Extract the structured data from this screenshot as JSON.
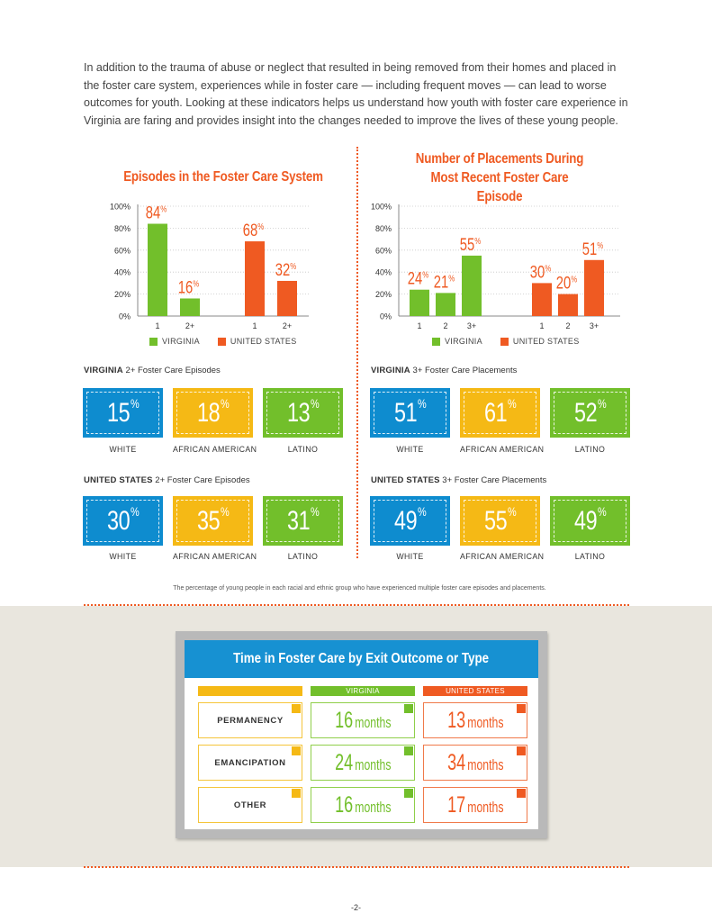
{
  "intro_text": "In addition to the trauma of abuse or neglect that resulted in being removed from their homes and placed in the foster care system, experiences while in foster care — including frequent moves — can lead to worse outcomes for youth. Looking at these indicators helps us understand how youth with foster care experience in Virginia are faring and provides insight into the changes needed to improve the lives of these young people.",
  "colors": {
    "virginia": "#72bf2b",
    "united_states": "#ef5a22",
    "white": "#0e8ccf",
    "african_american": "#f5b915",
    "latino": "#72bf2b",
    "accent": "#ef5a22",
    "title_bar": "#1791d2"
  },
  "chart_data": [
    {
      "type": "bar",
      "title": "Episodes in the Foster Care System",
      "categories": [
        "1",
        "2+"
      ],
      "series": [
        {
          "name": "VIRGINIA",
          "values": [
            84,
            16
          ]
        },
        {
          "name": "UNITED STATES",
          "values": [
            68,
            32
          ]
        }
      ],
      "value_labels": [
        [
          "84%",
          "16%"
        ],
        [
          "68%",
          "32%"
        ]
      ],
      "yticks": [
        "0%",
        "20%",
        "40%",
        "60%",
        "80%",
        "100%"
      ],
      "ylim": [
        0,
        100
      ],
      "grid": true,
      "legend": "bottom"
    },
    {
      "type": "bar",
      "title": "Number of Placements During Most Recent Foster Care Episode",
      "categories": [
        "1",
        "2",
        "3+"
      ],
      "series": [
        {
          "name": "VIRGINIA",
          "values": [
            24,
            21,
            55
          ]
        },
        {
          "name": "UNITED STATES",
          "values": [
            30,
            20,
            51
          ]
        }
      ],
      "value_labels": [
        [
          "24%",
          "21%",
          "55%"
        ],
        [
          "30%",
          "20%",
          "51%"
        ]
      ],
      "yticks": [
        "0%",
        "20%",
        "40%",
        "60%",
        "80%",
        "100%"
      ],
      "ylim": [
        0,
        100
      ],
      "grid": true,
      "legend": "bottom"
    }
  ],
  "stats": {
    "va_episodes": {
      "label_bold": "VIRGINIA",
      "label_rest": " 2+ Foster Care Episodes",
      "values": [
        "15",
        "18",
        "13"
      ]
    },
    "us_episodes": {
      "label_bold": "UNITED STATES",
      "label_rest": " 2+ Foster Care Episodes",
      "values": [
        "30",
        "35",
        "31"
      ]
    },
    "va_placements": {
      "label_bold": "VIRGINIA",
      "label_rest": " 3+ Foster Care Placements",
      "values": [
        "51",
        "61",
        "52"
      ]
    },
    "us_placements": {
      "label_bold": "UNITED STATES",
      "label_rest": " 3+ Foster Care Placements",
      "values": [
        "49",
        "55",
        "49"
      ]
    },
    "groups": [
      "WHITE",
      "AFRICAN AMERICAN",
      "LATINO"
    ],
    "percent_sign": "%"
  },
  "caption": "The percentage of young people in each racial and ethnic group who have experienced multiple foster care episodes and placements.",
  "time_table": {
    "title": "Time in Foster Care by Exit Outcome or Type",
    "col_virginia": "VIRGINIA",
    "col_us": "UNITED STATES",
    "unit": "months",
    "rows": [
      {
        "label": "PERMANENCY",
        "virginia": "16",
        "us": "13"
      },
      {
        "label": "EMANCIPATION",
        "virginia": "24",
        "us": "34"
      },
      {
        "label": "OTHER",
        "virginia": "16",
        "us": "17"
      }
    ]
  },
  "page_number": "-2-"
}
